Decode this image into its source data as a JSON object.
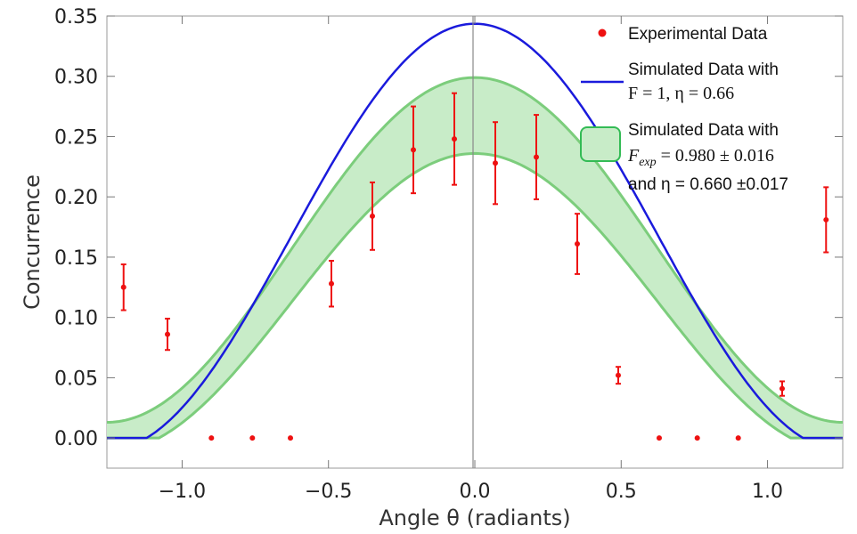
{
  "chart_data": {
    "type": "scatter",
    "xlabel": "Angle θ (radiants)",
    "ylabel": "Concurrence",
    "xlim": [
      -1.257,
      1.257
    ],
    "ylim": [
      -0.025,
      0.35
    ],
    "x_ticks": [
      -1.0,
      -0.5,
      0.0,
      0.5,
      1.0
    ],
    "x_tick_labels": [
      "−1.0",
      "−0.5",
      "0.0",
      "0.5",
      "1.0"
    ],
    "y_ticks": [
      0.0,
      0.05,
      0.1,
      0.15,
      0.2,
      0.25,
      0.3,
      0.35
    ],
    "y_tick_labels": [
      "0.00",
      "0.05",
      "0.10",
      "0.15",
      "0.20",
      "0.25",
      "0.30",
      "0.35"
    ],
    "series": [
      {
        "name": "Experimental Data",
        "kind": "points_with_error",
        "color": "#ee1111",
        "x": [
          -1.2,
          -1.05,
          -0.9,
          -0.76,
          -0.63,
          -0.49,
          -0.35,
          -0.21,
          -0.07,
          0.07,
          0.21,
          0.35,
          0.49,
          0.63,
          0.76,
          0.9,
          1.05,
          1.2
        ],
        "y": [
          0.125,
          0.086,
          0.0,
          0.0,
          0.0,
          0.128,
          0.184,
          0.239,
          0.248,
          0.228,
          0.233,
          0.161,
          0.052,
          0.0,
          0.0,
          0.0,
          0.041,
          0.181
        ],
        "err": [
          0.019,
          0.013,
          0.0,
          0.0,
          0.0,
          0.019,
          0.028,
          0.036,
          0.038,
          0.034,
          0.035,
          0.025,
          0.007,
          0.0,
          0.0,
          0.0,
          0.006,
          0.027
        ]
      },
      {
        "name": "Simulated Data with F = 1, η = 0.66",
        "kind": "curve",
        "color": "#1a1adc",
        "model": "max(0, 0.34*(1+cos(2.5*θ))/2*1.04 - 0.01)"
      },
      {
        "name": "Simulated Data with F_exp = 0.980 ± 0.016 and η = 0.660 ±0.017",
        "kind": "band",
        "edge_color": "#7ccd7c",
        "fill_color": "#c8ecc8",
        "upper": {
          "a": 0.143,
          "b": 0.156
        },
        "lower": {
          "a": 0.124,
          "b": 0.112
        }
      }
    ],
    "legend": {
      "placement": "top-right",
      "entries": [
        {
          "lines": [
            "Experimental Data"
          ]
        },
        {
          "lines": [
            "Simulated Data with",
            "F = 1, η = 0.66"
          ]
        },
        {
          "lines": [
            "Simulated Data with",
            "F",
            "exp",
            " = 0.980 ± 0.016",
            "and η = 0.660 ±0.017"
          ]
        }
      ]
    },
    "grid": false
  }
}
